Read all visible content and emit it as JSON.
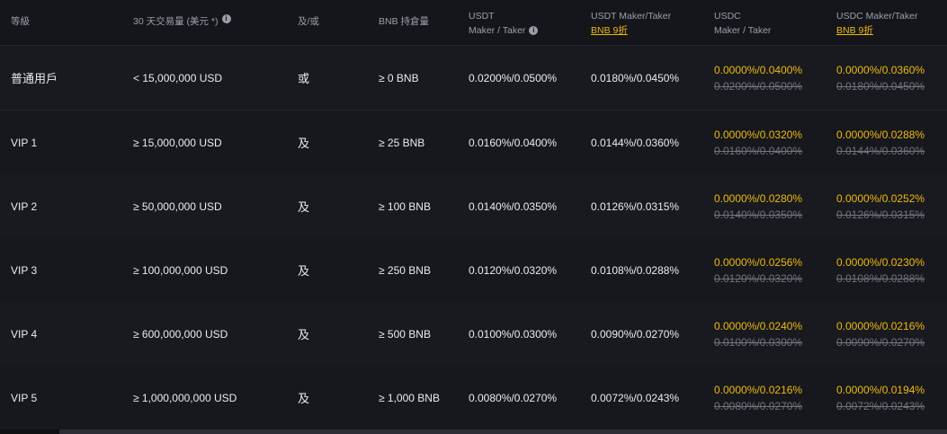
{
  "header": {
    "tier": "等級",
    "volume": "30 天交易量 (美元 *)",
    "volume_info_icon": "info-icon",
    "logic": "及/或",
    "bnb": "BNB 持倉量",
    "usdt_line1": "USDT",
    "usdt_line2": "Maker / Taker",
    "usdt_info_icon": "info-icon",
    "usdt_bnb_line1": "USDT Maker/Taker",
    "usdt_bnb_link": "BNB 9折",
    "usdc_line1": "USDC",
    "usdc_line2": "Maker / Taker",
    "usdc_bnb_line1": "USDC Maker/Taker",
    "usdc_bnb_link": "BNB 9折"
  },
  "colors": {
    "accent": "#f0b90b",
    "muted": "#6f747d",
    "text": "#eaecef"
  },
  "rows": [
    {
      "tier": "普通用戶",
      "volume": "< 15,000,000 USD",
      "logic": "或",
      "bnb": "≥ 0 BNB",
      "usdt": "0.0200%/0.0500%",
      "usdt_bnb": "0.0180%/0.0450%",
      "usdc_new": "0.0000%/0.0400%",
      "usdc_old": "0.0200%/0.0500%",
      "usdc_bnb_new": "0.0000%/0.0360%",
      "usdc_bnb_old": "0.0180%/0.0450%"
    },
    {
      "tier": "VIP 1",
      "volume": "≥ 15,000,000 USD",
      "logic": "及",
      "bnb": "≥ 25 BNB",
      "usdt": "0.0160%/0.0400%",
      "usdt_bnb": "0.0144%/0.0360%",
      "usdc_new": "0.0000%/0.0320%",
      "usdc_old": "0.0160%/0.0400%",
      "usdc_bnb_new": "0.0000%/0.0288%",
      "usdc_bnb_old": "0.0144%/0.0360%"
    },
    {
      "tier": "VIP 2",
      "volume": "≥ 50,000,000 USD",
      "logic": "及",
      "bnb": "≥ 100 BNB",
      "usdt": "0.0140%/0.0350%",
      "usdt_bnb": "0.0126%/0.0315%",
      "usdc_new": "0.0000%/0.0280%",
      "usdc_old": "0.0140%/0.0350%",
      "usdc_bnb_new": "0.0000%/0.0252%",
      "usdc_bnb_old": "0.0126%/0.0315%"
    },
    {
      "tier": "VIP 3",
      "volume": "≥ 100,000,000 USD",
      "logic": "及",
      "bnb": "≥ 250 BNB",
      "usdt": "0.0120%/0.0320%",
      "usdt_bnb": "0.0108%/0.0288%",
      "usdc_new": "0.0000%/0.0256%",
      "usdc_old": "0.0120%/0.0320%",
      "usdc_bnb_new": "0.0000%/0.0230%",
      "usdc_bnb_old": "0.0108%/0.0288%"
    },
    {
      "tier": "VIP 4",
      "volume": "≥ 600,000,000 USD",
      "logic": "及",
      "bnb": "≥ 500 BNB",
      "usdt": "0.0100%/0.0300%",
      "usdt_bnb": "0.0090%/0.0270%",
      "usdc_new": "0.0000%/0.0240%",
      "usdc_old": "0.0100%/0.0300%",
      "usdc_bnb_new": "0.0000%/0.0216%",
      "usdc_bnb_old": "0.0090%/0.0270%"
    },
    {
      "tier": "VIP 5",
      "volume": "≥ 1,000,000,000 USD",
      "logic": "及",
      "bnb": "≥ 1,000 BNB",
      "usdt": "0.0080%/0.0270%",
      "usdt_bnb": "0.0072%/0.0243%",
      "usdc_new": "0.0000%/0.0216%",
      "usdc_old": "0.0080%/0.0270%",
      "usdc_bnb_new": "0.0000%/0.0194%",
      "usdc_bnb_old": "0.0072%/0.0243%"
    }
  ]
}
